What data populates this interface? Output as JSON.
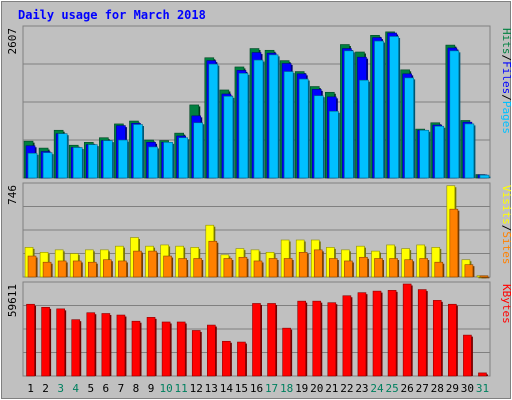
{
  "chart_data": {
    "type": "bar",
    "title": "Daily usage for March 2018",
    "categories": [
      "1",
      "2",
      "3",
      "4",
      "5",
      "6",
      "7",
      "8",
      "9",
      "10",
      "11",
      "12",
      "13",
      "14",
      "15",
      "16",
      "17",
      "18",
      "19",
      "20",
      "21",
      "22",
      "23",
      "24",
      "25",
      "26",
      "27",
      "28",
      "29",
      "30",
      "31"
    ],
    "weekend_days": [
      "3",
      "4",
      "10",
      "11",
      "17",
      "18",
      "24",
      "25",
      "31"
    ],
    "panels": [
      {
        "id": "pages-files-hits",
        "ymax_label": "2607",
        "ymax": 2607,
        "ylabel_parts": [
          "Pages",
          "/",
          "Files",
          "/",
          "Hits"
        ],
        "series": [
          {
            "name": "Hits",
            "color": "#008040",
            "values": [
              640,
              520,
              830,
              570,
              620,
              700,
              940,
              990,
              660,
              650,
              780,
              1270,
              2090,
              1530,
              1930,
              2250,
              2220,
              2040,
              1850,
              1590,
              1490,
              2320,
              2190,
              2480,
              2540,
              1880,
              850,
              960,
              2310,
              1000,
              60
            ]
          },
          {
            "name": "Files",
            "color": "#0000ff",
            "values": [
              560,
              460,
              770,
              530,
              580,
              650,
              910,
              950,
              620,
              620,
              730,
              1080,
              2040,
              1460,
              1870,
              2180,
              2170,
              1990,
              1810,
              1540,
              1410,
              2250,
              2100,
              2440,
              2520,
              1810,
              830,
              920,
              2260,
              970,
              55
            ]
          },
          {
            "name": "Pages",
            "color": "#00c0ff",
            "values": [
              430,
              440,
              770,
              530,
              580,
              650,
              660,
              930,
              540,
              620,
              700,
              960,
              1980,
              1420,
              1820,
              2050,
              2140,
              1850,
              1720,
              1430,
              1160,
              2210,
              1700,
              2380,
              2460,
              1740,
              830,
              900,
              2210,
              940,
              50
            ]
          }
        ]
      },
      {
        "id": "visits-sites",
        "ymax_label": "746",
        "ymax": 746,
        "ylabel_parts": [
          "Sites",
          "/",
          "Visits"
        ],
        "series": [
          {
            "name": "Visits",
            "color": "#ffff00",
            "values": [
              240,
              200,
              220,
              190,
              220,
              220,
              250,
              320,
              250,
              260,
              250,
              240,
              420,
              180,
              230,
              220,
              200,
              300,
              300,
              300,
              240,
              220,
              250,
              210,
              260,
              230,
              260,
              240,
              740,
              140,
              10
            ]
          },
          {
            "name": "Sites",
            "color": "#ff8000",
            "values": [
              170,
              120,
              130,
              130,
              120,
              140,
              130,
              210,
              210,
              170,
              150,
              150,
              290,
              150,
              160,
              130,
              150,
              150,
              200,
              220,
              150,
              130,
              160,
              150,
              150,
              140,
              150,
              120,
              550,
              100,
              10
            ]
          }
        ]
      },
      {
        "id": "kbytes",
        "ymax_label": "59611",
        "ymax": 59611,
        "ylabel_parts": [
          "KBytes"
        ],
        "series": [
          {
            "name": "KBytes",
            "color": "#ff0000",
            "values": [
              46500,
              44500,
              43500,
              36500,
              41000,
              40500,
              39500,
              35500,
              38000,
              35000,
              35000,
              29500,
              33000,
              22500,
              22000,
              47000,
              47000,
              31000,
              48500,
              48500,
              47500,
              52000,
              54000,
              55000,
              55500,
              59611,
              56000,
              49000,
              46500,
              26500,
              2000
            ]
          }
        ]
      }
    ],
    "grid": true
  }
}
